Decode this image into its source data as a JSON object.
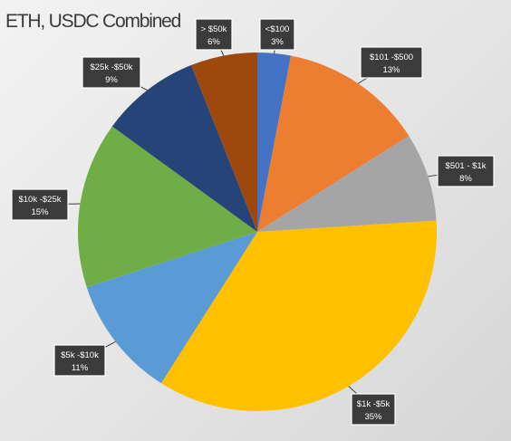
{
  "chart_data": {
    "type": "pie",
    "title": "ETH, USDC Combined",
    "slices": [
      {
        "label": "<$100",
        "percent_label": "3%",
        "value": 3,
        "color": "#4472c4"
      },
      {
        "label": "$101 -$500",
        "percent_label": "13%",
        "value": 13,
        "color": "#ed7d31"
      },
      {
        "label": "$501 - $1k",
        "percent_label": "8%",
        "value": 8,
        "color": "#a5a5a5"
      },
      {
        "label": "$1k -$5k",
        "percent_label": "35%",
        "value": 35,
        "color": "#ffc000"
      },
      {
        "label": "$5k -$10k",
        "percent_label": "11%",
        "value": 11,
        "color": "#5b9bd5"
      },
      {
        "label": "$10k -$25k",
        "percent_label": "15%",
        "value": 15,
        "color": "#70ad47"
      },
      {
        "label": "$25k -$50k",
        "percent_label": "9%",
        "value": 9,
        "color": "#264478"
      },
      {
        "label": "> $50k",
        "percent_label": "6%",
        "value": 6,
        "color": "#9e480e"
      }
    ]
  }
}
